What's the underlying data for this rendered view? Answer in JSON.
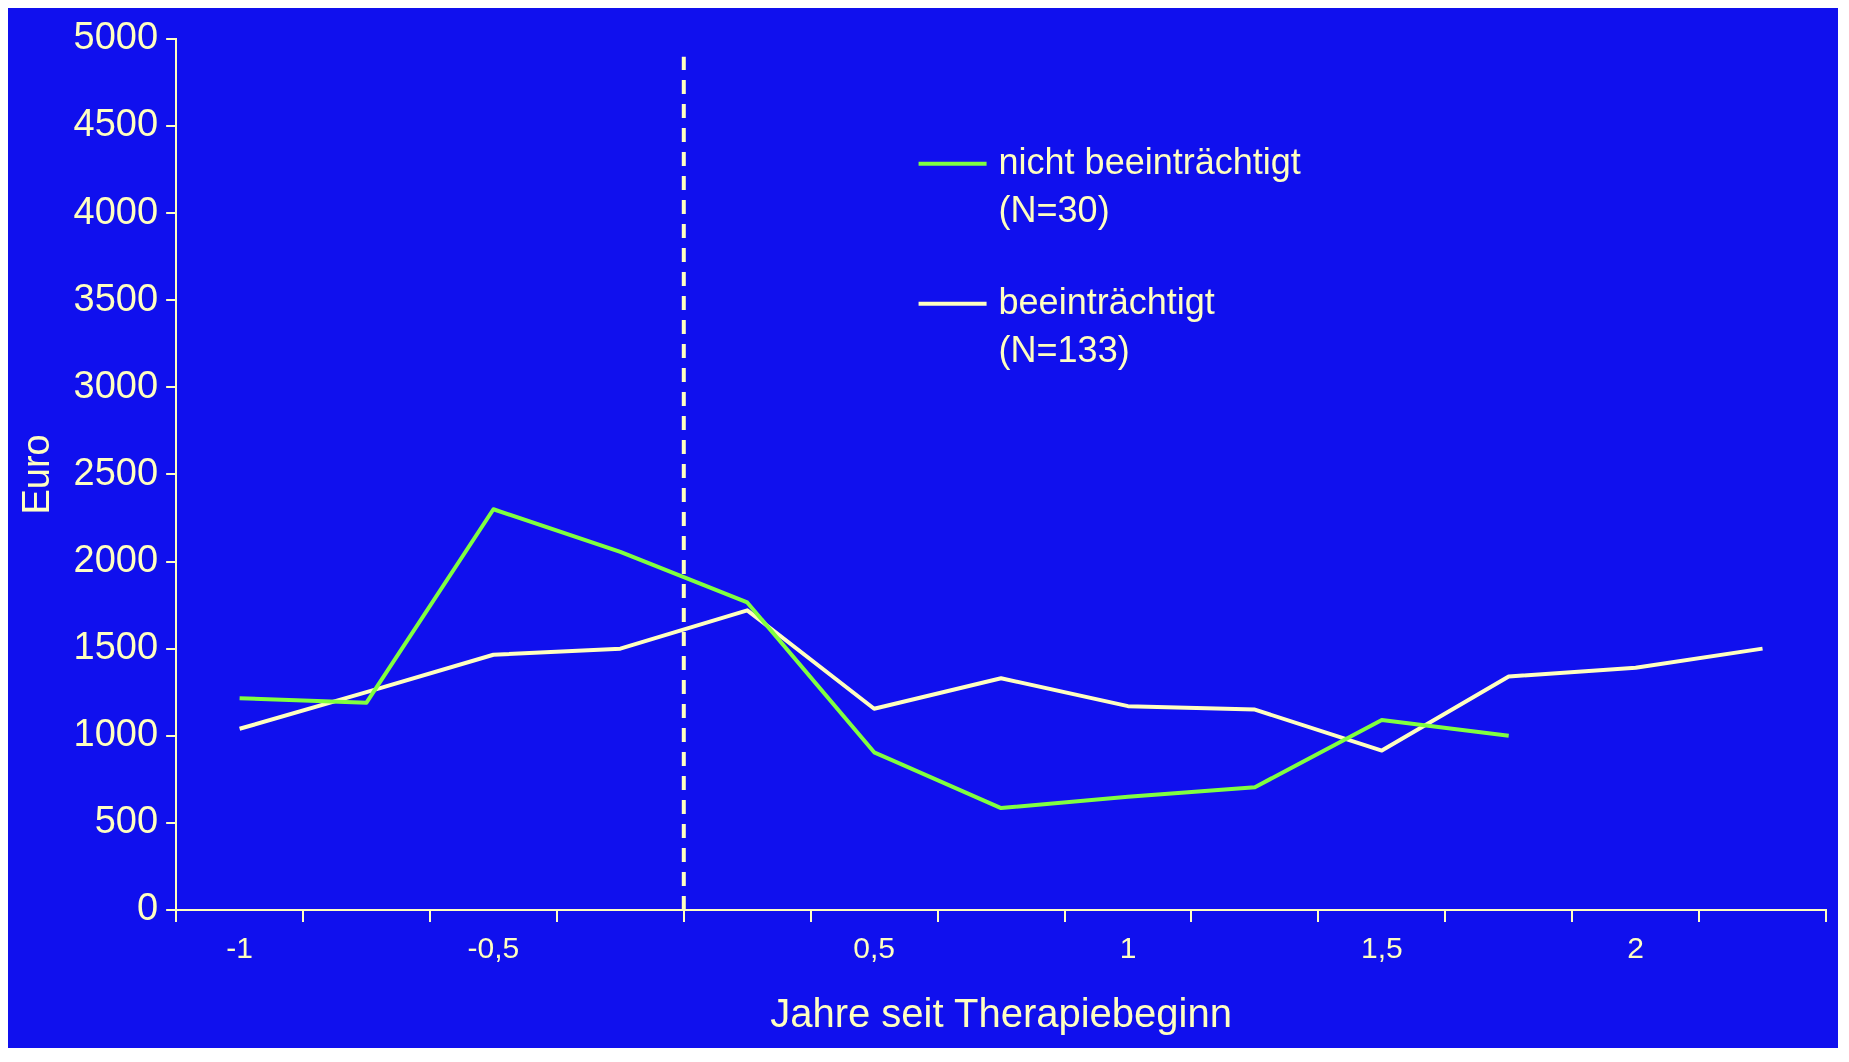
{
  "chart_data": {
    "type": "line",
    "xlabel": "Jahre seit Therapiebeginn",
    "ylabel": "Euro",
    "categories": [
      "-1",
      null,
      "-0,5",
      null,
      null,
      "0,5",
      null,
      "1",
      null,
      "1,5",
      null,
      "2",
      null
    ],
    "series": [
      {
        "name": "nicht beeinträchtigt (N=30)",
        "color": "#80ff40",
        "values": [
          1215,
          1190,
          2300,
          2055,
          1765,
          905,
          585,
          650,
          705,
          1090,
          1000,
          null,
          null
        ]
      },
      {
        "name": "beeinträchtigt (N=133)",
        "color": "#ffffc0",
        "values": [
          1040,
          1250,
          1465,
          1500,
          1720,
          1155,
          1330,
          1170,
          1150,
          915,
          1340,
          1390,
          1500
        ]
      }
    ],
    "ylim": [
      0,
      5000
    ],
    "yticks": [
      0,
      500,
      1000,
      1500,
      2000,
      2500,
      3000,
      3500,
      4000,
      4500,
      5000
    ],
    "grid": false,
    "legend": "top",
    "marker": "none",
    "line_style": "solid"
  }
}
